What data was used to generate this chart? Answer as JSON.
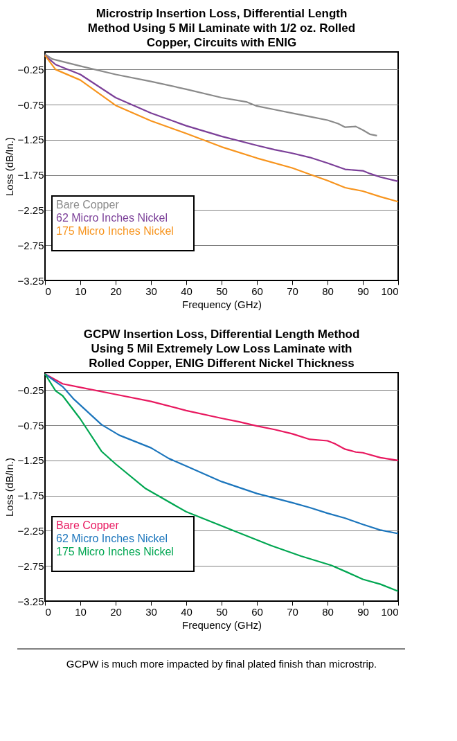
{
  "chart_data": [
    {
      "type": "line",
      "title": "Microstrip Insertion Loss, Differential Length Method Using 5 Mil Laminate with 1/2 oz. Rolled Copper, Circuits with ENIG",
      "xlabel": "Frequency (GHz)",
      "ylabel": "Loss (dB/In.)",
      "xlim": [
        0,
        100
      ],
      "xticks": [
        0,
        10,
        20,
        30,
        40,
        50,
        60,
        70,
        80,
        90,
        100
      ],
      "ylim": [
        -3.25,
        0
      ],
      "yticks": [
        -0.25,
        -0.75,
        -1.25,
        -1.75,
        -2.25,
        -2.75,
        -3.25
      ],
      "grid": "y",
      "legend": "left",
      "marker": "none",
      "line_style": "solid",
      "series": [
        {
          "name": "Bare Copper",
          "color": "#8a8a8a",
          "x": [
            0,
            2,
            10,
            20,
            30,
            40,
            50,
            57,
            60,
            65,
            70,
            75,
            80,
            83,
            85,
            88,
            90,
            92,
            94
          ],
          "values": [
            -0.03,
            -0.1,
            -0.2,
            -0.32,
            -0.42,
            -0.53,
            -0.65,
            -0.71,
            -0.77,
            -0.82,
            -0.87,
            -0.92,
            -0.97,
            -1.02,
            -1.07,
            -1.06,
            -1.11,
            -1.17,
            -1.19
          ]
        },
        {
          "name": "62 Micro Inches Nickel",
          "color": "#7b3f98",
          "x": [
            0,
            3,
            10,
            20,
            30,
            40,
            50,
            60,
            65,
            70,
            75,
            80,
            85,
            90,
            92,
            95,
            100
          ],
          "values": [
            -0.05,
            -0.18,
            -0.32,
            -0.65,
            -0.87,
            -1.05,
            -1.2,
            -1.33,
            -1.39,
            -1.44,
            -1.5,
            -1.58,
            -1.67,
            -1.69,
            -1.73,
            -1.78,
            -1.84
          ]
        },
        {
          "name": "175 Micro Inches Nickel",
          "color": "#f7941d",
          "x": [
            0,
            3,
            10,
            20,
            30,
            40,
            50,
            60,
            70,
            75,
            80,
            85,
            90,
            95,
            100
          ],
          "values": [
            -0.05,
            -0.25,
            -0.4,
            -0.76,
            -0.98,
            -1.16,
            -1.35,
            -1.51,
            -1.65,
            -1.74,
            -1.83,
            -1.93,
            -1.98,
            -2.06,
            -2.13
          ]
        }
      ]
    },
    {
      "type": "line",
      "title": "GCPW Insertion Loss, Differential Length Method Using 5 Mil Extremely Low Loss Laminate with Rolled Copper, ENIG Different Nickel Thickness",
      "xlabel": "Frequency (GHz)",
      "ylabel": "Loss (dB/In.)",
      "xlim": [
        0,
        100
      ],
      "xticks": [
        0,
        10,
        20,
        30,
        40,
        50,
        60,
        70,
        80,
        90,
        100
      ],
      "ylim": [
        -3.25,
        0
      ],
      "yticks": [
        -0.25,
        -0.75,
        -1.25,
        -1.75,
        -2.25,
        -2.75,
        -3.25
      ],
      "grid": "y",
      "legend": "left",
      "marker": "none",
      "line_style": "solid",
      "annotations": [
        "GCPW is much more impacted by final plated finish than microstrip."
      ],
      "series": [
        {
          "name": "Bare Copper",
          "color": "#e8185f",
          "x": [
            0,
            5,
            10,
            20,
            30,
            40,
            50,
            55,
            60,
            65,
            70,
            75,
            80,
            82,
            85,
            88,
            90,
            95,
            100
          ],
          "values": [
            -0.02,
            -0.16,
            -0.21,
            -0.31,
            -0.41,
            -0.54,
            -0.65,
            -0.7,
            -0.76,
            -0.81,
            -0.87,
            -0.95,
            -0.97,
            -1.01,
            -1.09,
            -1.13,
            -1.14,
            -1.21,
            -1.25
          ]
        },
        {
          "name": "62 Micro Inches Nickel",
          "color": "#1b75bc",
          "x": [
            0,
            5,
            8,
            16,
            21,
            30,
            35,
            40,
            50,
            60,
            70,
            75,
            80,
            85,
            90,
            95,
            100
          ],
          "values": [
            -0.02,
            -0.2,
            -0.37,
            -0.74,
            -0.89,
            -1.07,
            -1.22,
            -1.33,
            -1.55,
            -1.72,
            -1.85,
            -1.92,
            -2.0,
            -2.07,
            -2.16,
            -2.24,
            -2.29
          ]
        },
        {
          "name": "175 Micro Inches Nickel",
          "color": "#00a651",
          "x": [
            0,
            3,
            5,
            10,
            16,
            20,
            28.5,
            40,
            54,
            64,
            72.5,
            81,
            85.6,
            90,
            95,
            100
          ],
          "values": [
            -0.02,
            -0.26,
            -0.33,
            -0.66,
            -1.12,
            -1.3,
            -1.65,
            -1.98,
            -2.26,
            -2.46,
            -2.61,
            -2.74,
            -2.84,
            -2.94,
            -3.01,
            -3.11
          ]
        }
      ]
    }
  ]
}
